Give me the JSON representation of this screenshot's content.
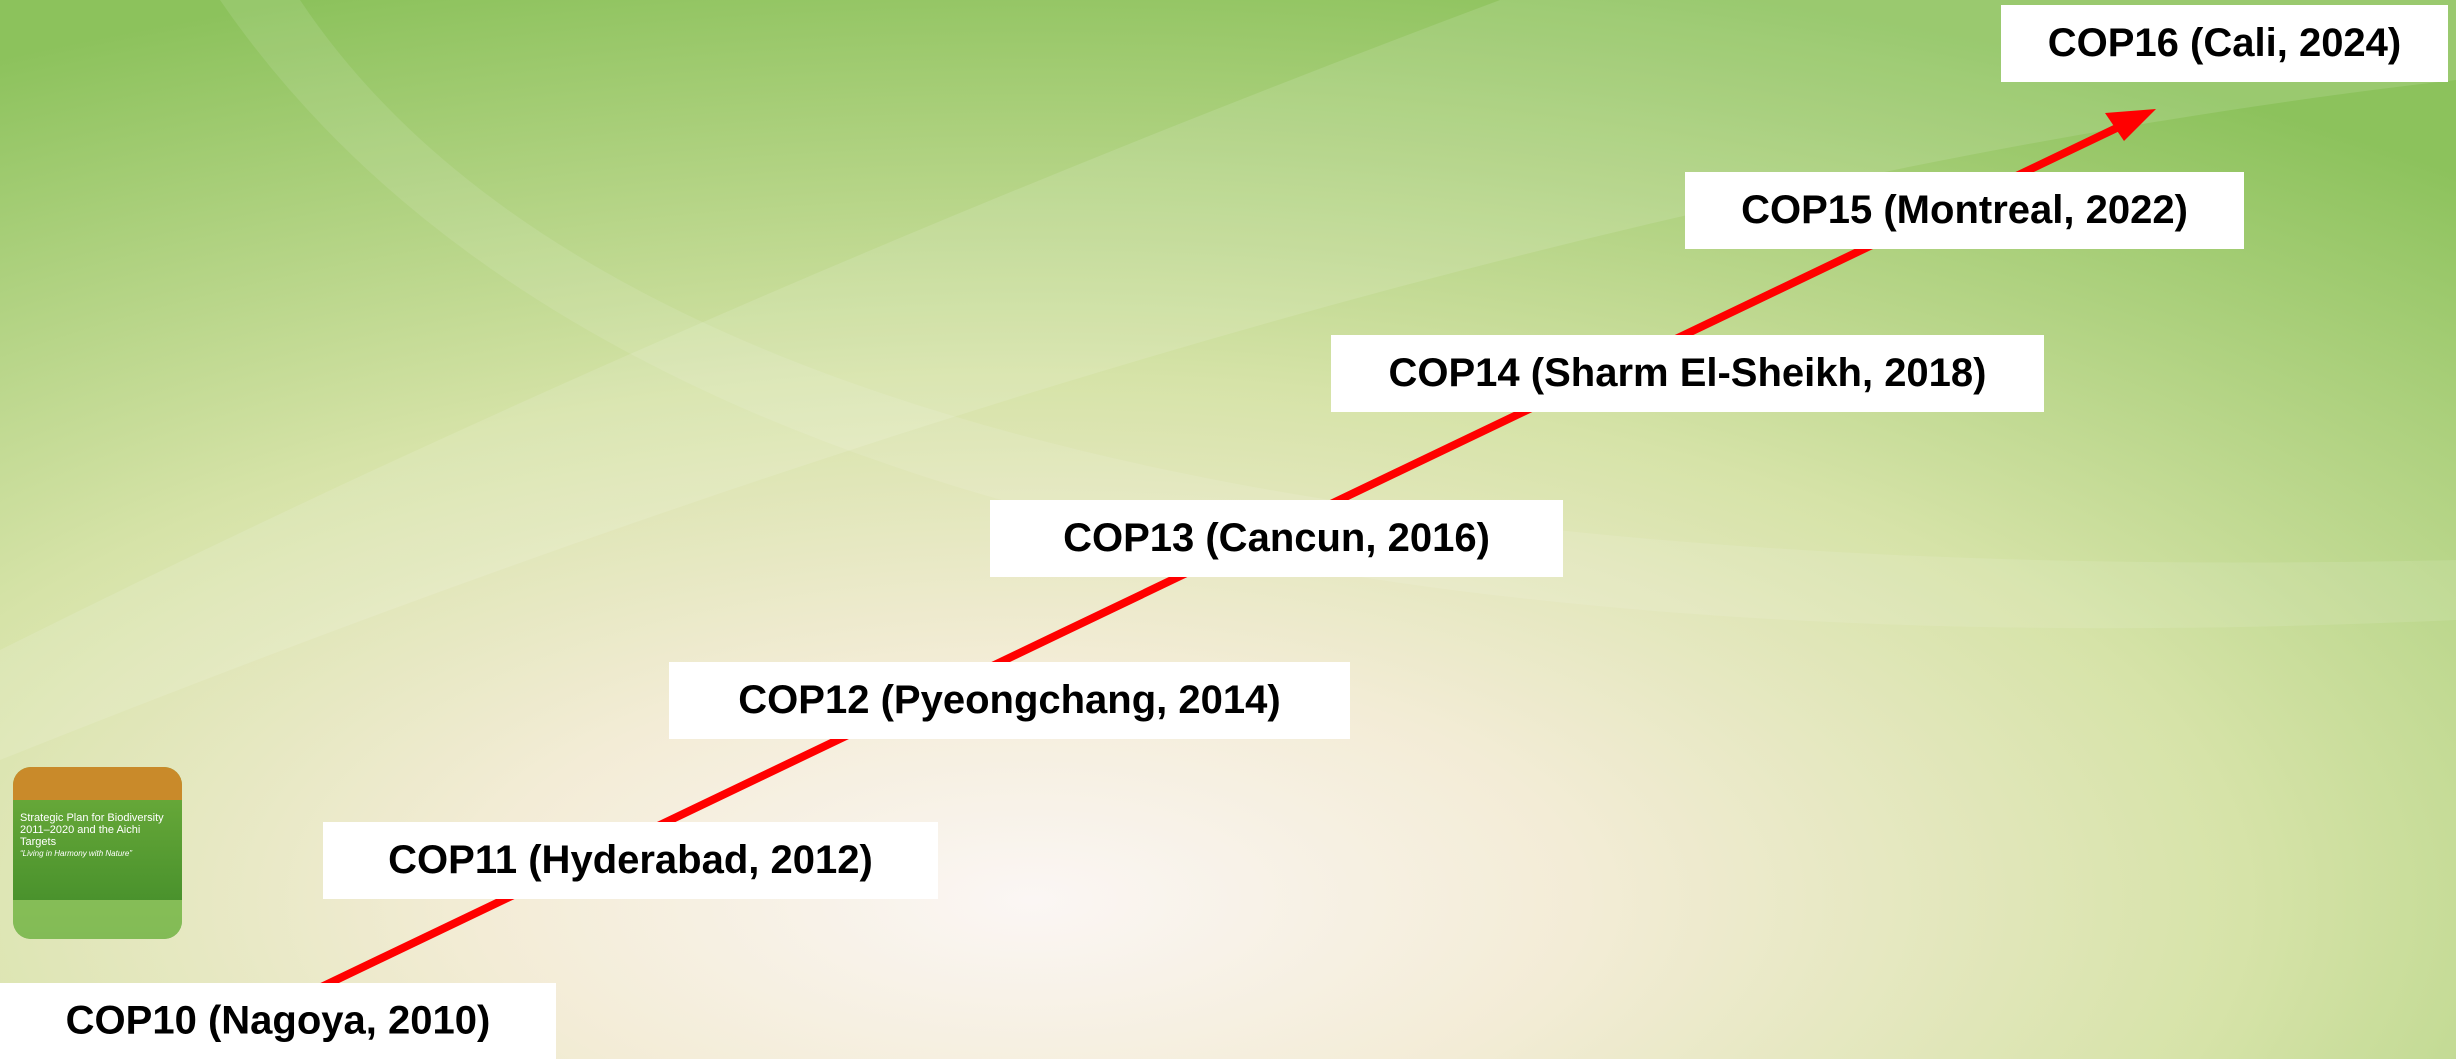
{
  "timeline": {
    "items": [
      {
        "label": "COP10 (Nagoya, 2010)"
      },
      {
        "label": "COP11 (Hyderabad, 2012)"
      },
      {
        "label": "COP12 (Pyeongchang, 2014)"
      },
      {
        "label": "COP13 (Cancun, 2016)"
      },
      {
        "label": "COP14 (Sharm El-Sheikh, 2018)"
      },
      {
        "label": "COP15 (Montreal, 2022)"
      },
      {
        "label": "COP16 (Cali, 2024)"
      }
    ]
  },
  "cover": {
    "title": "Strategic Plan for Biodiversity 2011–2020 and the Aichi Targets",
    "subtitle": "“Living in Harmony with Nature”"
  }
}
